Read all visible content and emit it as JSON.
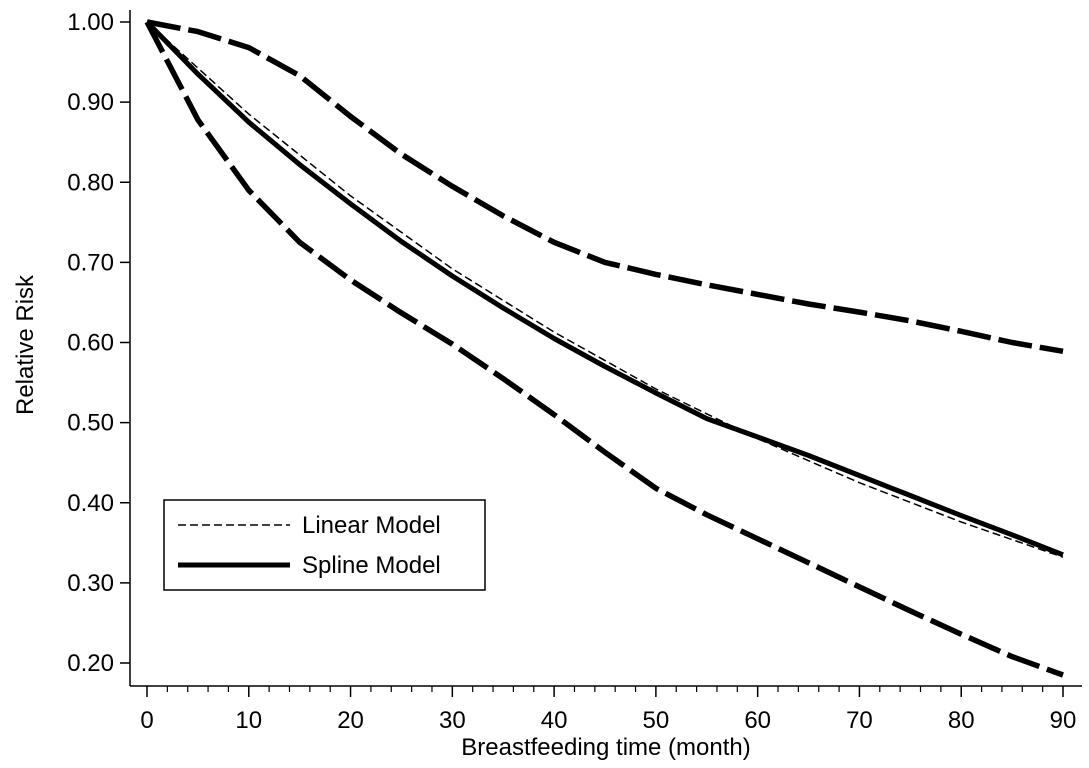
{
  "chart_data": {
    "type": "line",
    "xlabel": "Breastfeeding time (month)",
    "ylabel": "Relative Risk",
    "xlim": [
      0,
      90
    ],
    "ylim": [
      0.2,
      1.0
    ],
    "x_ticks": [
      0,
      10,
      20,
      30,
      40,
      50,
      60,
      70,
      80,
      90
    ],
    "x_tick_labels": [
      "0",
      "10",
      "20",
      "30",
      "40",
      "50",
      "60",
      "70",
      "80",
      "90"
    ],
    "y_ticks": [
      0.2,
      0.3,
      0.4,
      0.5,
      0.6,
      0.7,
      0.8,
      0.9,
      1.0
    ],
    "y_tick_labels": [
      "0.20",
      "0.30",
      "0.40",
      "0.50",
      "0.60",
      "0.70",
      "0.80",
      "0.90",
      "1.00"
    ],
    "grid": false,
    "legend_position": "bottom-left",
    "legend": [
      {
        "label": "Linear Model",
        "style": "thin-dashed"
      },
      {
        "label": "Spline Model",
        "style": "thick-solid"
      }
    ],
    "series": [
      {
        "name": "Linear Model",
        "style": "thin-dashed",
        "x": [
          0,
          10,
          20,
          30,
          40,
          50,
          60,
          70,
          80,
          90
        ],
        "y": [
          1.0,
          0.885,
          0.783,
          0.692,
          0.613,
          0.542,
          0.48,
          0.425,
          0.376,
          0.332
        ]
      },
      {
        "name": "Spline Model",
        "style": "thick-solid",
        "x": [
          0,
          5,
          10,
          15,
          20,
          25,
          30,
          35,
          40,
          45,
          50,
          55,
          60,
          65,
          70,
          75,
          80,
          85,
          90
        ],
        "y": [
          1.0,
          0.935,
          0.875,
          0.822,
          0.773,
          0.726,
          0.683,
          0.643,
          0.605,
          0.57,
          0.537,
          0.505,
          0.482,
          0.459,
          0.434,
          0.409,
          0.384,
          0.36,
          0.335
        ]
      },
      {
        "style": "thick-long-dash",
        "x": [
          0,
          5,
          10,
          15,
          20,
          25,
          30,
          35,
          40,
          45,
          50,
          55,
          60,
          65,
          70,
          75,
          80,
          85,
          90
        ],
        "y": [
          1.0,
          0.988,
          0.968,
          0.933,
          0.882,
          0.835,
          0.795,
          0.758,
          0.725,
          0.7,
          0.685,
          0.672,
          0.66,
          0.648,
          0.638,
          0.627,
          0.614,
          0.6,
          0.589
        ]
      },
      {
        "style": "thick-long-dash",
        "x": [
          0,
          5,
          10,
          15,
          20,
          25,
          30,
          35,
          40,
          45,
          50,
          55,
          60,
          65,
          70,
          75,
          80,
          85,
          90
        ],
        "y": [
          1.0,
          0.878,
          0.79,
          0.725,
          0.678,
          0.637,
          0.598,
          0.555,
          0.51,
          0.463,
          0.418,
          0.385,
          0.355,
          0.325,
          0.295,
          0.265,
          0.236,
          0.208,
          0.185
        ]
      }
    ]
  }
}
